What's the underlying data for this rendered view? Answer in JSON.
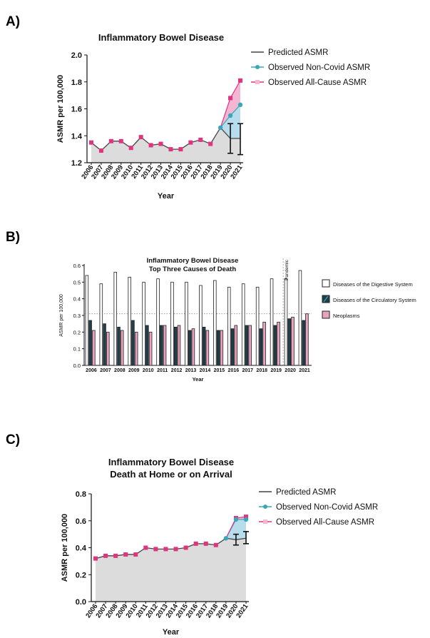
{
  "panels": {
    "a": "A)",
    "b": "B)",
    "c": "C)"
  },
  "chart_data": [
    {
      "type": "line",
      "title": "Inflammatory Bowel Disease",
      "xlabel": "Year",
      "ylabel": "ASMR per 100,000",
      "ylim": [
        1.2,
        2.0
      ],
      "yticks": [
        "1.2",
        "1.4",
        "1.6",
        "1.8",
        "2.0"
      ],
      "x": [
        "2006",
        "2007",
        "2008",
        "2009",
        "2010",
        "2011",
        "2012",
        "2013",
        "2014",
        "2015",
        "2016",
        "2017",
        "2018",
        "2019",
        "2020",
        "2021"
      ],
      "series": [
        {
          "name": "Predicted ASMR",
          "color": "#444444",
          "values": [
            1.35,
            1.29,
            1.36,
            1.36,
            1.31,
            1.39,
            1.33,
            1.34,
            1.3,
            1.3,
            1.35,
            1.37,
            1.34,
            1.46,
            1.38,
            1.38
          ],
          "error_bars": {
            "2020": [
              1.27,
              1.49
            ],
            "2021": [
              1.26,
              1.49
            ]
          }
        },
        {
          "name": "Observed Non-Covid ASMR",
          "color": "#3aa7b8",
          "values": [
            1.35,
            1.29,
            1.36,
            1.36,
            1.31,
            1.39,
            1.33,
            1.34,
            1.3,
            1.3,
            1.35,
            1.37,
            1.34,
            1.46,
            1.55,
            1.63
          ]
        },
        {
          "name": "Observed All-Cause ASMR",
          "color": "#e0347f",
          "values": [
            1.35,
            1.29,
            1.36,
            1.36,
            1.31,
            1.39,
            1.33,
            1.34,
            1.3,
            1.3,
            1.35,
            1.37,
            1.34,
            1.46,
            1.68,
            1.81
          ]
        }
      ],
      "legend": "right"
    },
    {
      "type": "bar",
      "title": "Inflammatory Bowel Disease",
      "subtitle": "Top Three Causes of Death",
      "xlabel": "Year",
      "ylabel": "ASMR per 100,000",
      "ylim": [
        0,
        0.6
      ],
      "yticks": [
        "0.0",
        "0.1",
        "0.2",
        "0.3",
        "0.4",
        "0.5",
        "0.6"
      ],
      "categories": [
        "2006",
        "2007",
        "2008",
        "2009",
        "2010",
        "2011",
        "2012",
        "2013",
        "2014",
        "2015",
        "2016",
        "2017",
        "2018",
        "2019",
        "2020",
        "2021"
      ],
      "annotation": "Pandemic",
      "reference_line": 0.31,
      "series": [
        {
          "name": "Diseases of the Digestive System",
          "color": "#ffffff",
          "values": [
            0.54,
            0.49,
            0.56,
            0.53,
            0.5,
            0.52,
            0.5,
            0.5,
            0.48,
            0.51,
            0.47,
            0.49,
            0.47,
            0.52,
            0.52,
            0.57
          ]
        },
        {
          "name": "Diseases of the Circulatory System",
          "color": "#1f3f4a",
          "values": [
            0.27,
            0.25,
            0.23,
            0.27,
            0.24,
            0.24,
            0.23,
            0.21,
            0.23,
            0.21,
            0.22,
            0.24,
            0.22,
            0.24,
            0.28,
            0.27
          ]
        },
        {
          "name": "Neoplasms",
          "color": "#e8a3c0",
          "values": [
            0.21,
            0.2,
            0.21,
            0.2,
            0.2,
            0.24,
            0.24,
            0.22,
            0.21,
            0.21,
            0.24,
            0.24,
            0.26,
            0.26,
            0.29,
            0.31
          ]
        }
      ],
      "legend": "right"
    },
    {
      "type": "line",
      "title": "Inflammatory Bowel Disease",
      "subtitle": "Death at Home or on Arrival",
      "xlabel": "Year",
      "ylabel": "ASMR per 100,000",
      "ylim": [
        0.0,
        0.8
      ],
      "yticks": [
        "0.0",
        "0.2",
        "0.4",
        "0.6",
        "0.8"
      ],
      "x": [
        "2006",
        "2007",
        "2008",
        "2009",
        "2010",
        "2011",
        "2012",
        "2013",
        "2014",
        "2015",
        "2016",
        "2017",
        "2018",
        "2019",
        "2020",
        "2021"
      ],
      "series": [
        {
          "name": "Predicted ASMR",
          "color": "#444444",
          "values": [
            0.32,
            0.34,
            0.34,
            0.35,
            0.35,
            0.4,
            0.39,
            0.39,
            0.39,
            0.4,
            0.43,
            0.43,
            0.42,
            0.47,
            0.46,
            0.47
          ],
          "error_bars": {
            "2020": [
              0.42,
              0.5
            ],
            "2021": [
              0.43,
              0.52
            ]
          }
        },
        {
          "name": "Observed Non-Covid ASMR",
          "color": "#3aa7b8",
          "values": [
            0.32,
            0.34,
            0.34,
            0.35,
            0.35,
            0.4,
            0.39,
            0.39,
            0.39,
            0.4,
            0.43,
            0.43,
            0.42,
            0.47,
            0.61,
            0.61
          ]
        },
        {
          "name": "Observed All-Cause ASMR",
          "color": "#e0347f",
          "values": [
            0.32,
            0.34,
            0.34,
            0.35,
            0.35,
            0.4,
            0.39,
            0.39,
            0.39,
            0.4,
            0.43,
            0.43,
            0.42,
            0.47,
            0.62,
            0.63
          ]
        }
      ],
      "legend": "right"
    }
  ]
}
